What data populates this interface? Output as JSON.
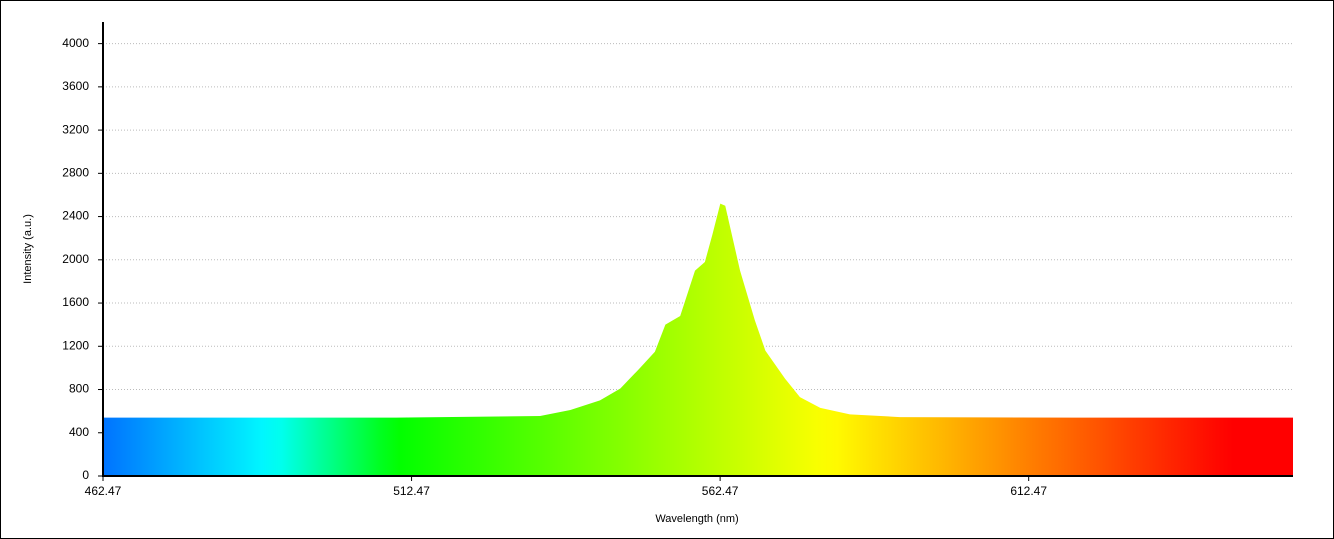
{
  "chart_data": {
    "type": "area",
    "x_label": "Wavelength (nm)",
    "y_label": "Intensity (a.u.)",
    "x": [
      462.47,
      490,
      510,
      533.3,
      538.2,
      543.0,
      546.3,
      549.5,
      551.9,
      553.6,
      556.0,
      558.4,
      560.0,
      561.2,
      562.5,
      563.3,
      565.7,
      568.1,
      569.8,
      573.0,
      575.4,
      578.7,
      583.5,
      591.6,
      620,
      655.3
    ],
    "values": [
      540,
      540,
      540,
      555,
      610,
      700,
      810,
      1000,
      1150,
      1400,
      1480,
      1900,
      1980,
      2230,
      2520,
      2500,
      1900,
      1440,
      1160,
      900,
      730,
      630,
      570,
      545,
      540,
      540
    ],
    "colormap": "wavelength",
    "xlim": [
      462.47,
      655.3
    ],
    "ylim": [
      0,
      4200
    ],
    "xticks": [
      462.47,
      512.47,
      562.47,
      612.47
    ],
    "yticks": [
      0,
      400,
      800,
      1200,
      1600,
      2000,
      2400,
      2800,
      3200,
      3600,
      4000
    ],
    "grid": true
  }
}
